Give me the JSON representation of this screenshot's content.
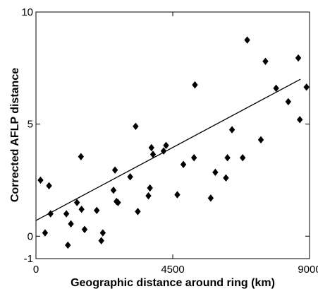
{
  "chart_data": {
    "type": "scatter",
    "xlabel": "Geographic distance around ring (km)",
    "ylabel": "Corrected AFLP distance",
    "xlim": [
      0,
      9000
    ],
    "ylim": [
      -1,
      10
    ],
    "x_ticks": [
      {
        "value": 0,
        "label": "0"
      },
      {
        "value": 4500,
        "label": "4500"
      },
      {
        "value": 9000,
        "label": "9000"
      }
    ],
    "y_ticks": [
      {
        "value": -1,
        "label": "-1"
      },
      {
        "value": 0,
        "label": "0"
      },
      {
        "value": 5,
        "label": "5"
      },
      {
        "value": 10,
        "label": "10"
      }
    ],
    "grid": false,
    "marker": "diamond",
    "marker_color": "#000000",
    "regression_line": {
      "x": [
        0,
        8700
      ],
      "y": [
        0.7,
        7.0
      ]
    },
    "points": [
      {
        "x": 150,
        "y": 2.5
      },
      {
        "x": 300,
        "y": 0.15
      },
      {
        "x": 430,
        "y": 2.25
      },
      {
        "x": 480,
        "y": 1.0
      },
      {
        "x": 1000,
        "y": 1.0
      },
      {
        "x": 1050,
        "y": -0.4
      },
      {
        "x": 1150,
        "y": 0.55
      },
      {
        "x": 1350,
        "y": 1.5
      },
      {
        "x": 1480,
        "y": 3.55
      },
      {
        "x": 1500,
        "y": 1.2
      },
      {
        "x": 1600,
        "y": 0.3
      },
      {
        "x": 2000,
        "y": 1.15
      },
      {
        "x": 2150,
        "y": -0.2
      },
      {
        "x": 2200,
        "y": 0.15
      },
      {
        "x": 2550,
        "y": 2.05
      },
      {
        "x": 2600,
        "y": 2.95
      },
      {
        "x": 2650,
        "y": 1.55
      },
      {
        "x": 2700,
        "y": 1.5
      },
      {
        "x": 3100,
        "y": 2.65
      },
      {
        "x": 3280,
        "y": 4.9
      },
      {
        "x": 3350,
        "y": 1.1
      },
      {
        "x": 3700,
        "y": 1.8
      },
      {
        "x": 3750,
        "y": 2.15
      },
      {
        "x": 3800,
        "y": 3.95
      },
      {
        "x": 3850,
        "y": 3.65
      },
      {
        "x": 4200,
        "y": 3.8
      },
      {
        "x": 4280,
        "y": 4.05
      },
      {
        "x": 4650,
        "y": 1.85
      },
      {
        "x": 4850,
        "y": 3.2
      },
      {
        "x": 5200,
        "y": 3.5
      },
      {
        "x": 5230,
        "y": 6.75
      },
      {
        "x": 5750,
        "y": 1.7
      },
      {
        "x": 5900,
        "y": 2.85
      },
      {
        "x": 6250,
        "y": 2.6
      },
      {
        "x": 6300,
        "y": 3.5
      },
      {
        "x": 6450,
        "y": 4.75
      },
      {
        "x": 6800,
        "y": 3.5
      },
      {
        "x": 6950,
        "y": 8.75
      },
      {
        "x": 7400,
        "y": 4.3
      },
      {
        "x": 7550,
        "y": 7.8
      },
      {
        "x": 7900,
        "y": 6.6
      },
      {
        "x": 8300,
        "y": 6.0
      },
      {
        "x": 8630,
        "y": 7.95
      },
      {
        "x": 8680,
        "y": 5.2
      },
      {
        "x": 8900,
        "y": 6.65
      }
    ]
  }
}
